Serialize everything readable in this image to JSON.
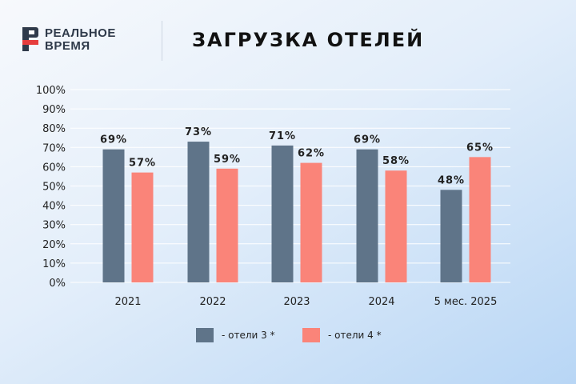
{
  "brand": {
    "line1": "РЕАЛЬНОЕ",
    "line2": "ВРЕМЯ"
  },
  "colors": {
    "series1": "#5f7489",
    "series2": "#fa8479",
    "grid": "#ffffff",
    "text": "#222222"
  },
  "chart_data": {
    "type": "bar",
    "title": "ЗАГРУЗКА ОТЕЛЕЙ",
    "categories": [
      "2021",
      "2022",
      "2023",
      "2024",
      "5 мес. 2025"
    ],
    "series": [
      {
        "name": "- отели 3 *",
        "values": [
          69,
          73,
          71,
          69,
          48
        ],
        "labels": [
          "69%",
          "73%",
          "71%",
          "69%",
          "48%"
        ]
      },
      {
        "name": "- отели 4 *",
        "values": [
          57,
          59,
          62,
          58,
          65
        ],
        "labels": [
          "57%",
          "59%",
          "62%",
          "58%",
          "65%"
        ]
      }
    ],
    "ylim": [
      0,
      100
    ],
    "yticks": [
      "0%",
      "10%",
      "20%",
      "30%",
      "40%",
      "50%",
      "60%",
      "70%",
      "80%",
      "90%",
      "100%"
    ],
    "grid": true,
    "legend_position": "bottom"
  }
}
